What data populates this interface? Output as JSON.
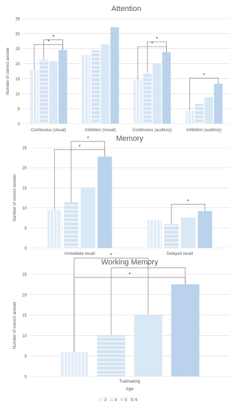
{
  "colors": {
    "s3": "#e2ecf7",
    "s4": "#d3e3f3",
    "s5": "#d9e8f5",
    "s6": "#c4d9ef",
    "grid": "#d9d9d9",
    "axis_text": "#595959",
    "title": "#595959",
    "bracket": "#7f7f7f"
  },
  "legend": {
    "title": "Age",
    "items": [
      {
        "key": "s3",
        "label": "3"
      },
      {
        "key": "s4",
        "label": "4"
      },
      {
        "key": "s5",
        "label": "5"
      },
      {
        "key": "s6",
        "label": "6"
      }
    ]
  },
  "chart_data": [
    {
      "type": "bar",
      "title": "Attention",
      "ylabel": "Number of correct answer",
      "xlabel": "",
      "ylim": [
        0,
        35
      ],
      "yticks": [
        0,
        5,
        10,
        15,
        20,
        25,
        30,
        35
      ],
      "grid": true,
      "categories": [
        "Continuous (visual)",
        "Inhibition (visual)",
        "Continuous (auditory)",
        "Inhibition (auditory)"
      ],
      "series": [
        {
          "name": "3",
          "values": [
            17.8,
            22.9,
            14.5,
            4.4
          ]
        },
        {
          "name": "4",
          "values": [
            21.3,
            24.4,
            16.9,
            6.6
          ]
        },
        {
          "name": "5",
          "values": [
            20.8,
            26.4,
            20.1,
            8.8
          ]
        },
        {
          "name": "6",
          "values": [
            24.5,
            32.1,
            23.8,
            13.3
          ]
        }
      ],
      "significance": [
        {
          "category": 0,
          "from": 0,
          "to": 3,
          "label": "*"
        },
        {
          "category": 0,
          "from": 1,
          "to": 3,
          "label": "*"
        },
        {
          "category": 2,
          "from": 0,
          "to": 3,
          "label": "*"
        },
        {
          "category": 2,
          "from": 1,
          "to": 3,
          "label": "*"
        },
        {
          "category": 3,
          "from": 0,
          "to": 3,
          "label": "*"
        }
      ]
    },
    {
      "type": "bar",
      "title": "Memory",
      "ylabel": "Number of correct answer",
      "xlabel": "",
      "ylim": [
        0,
        25
      ],
      "yticks": [
        0,
        5,
        10,
        15,
        20,
        25
      ],
      "grid": true,
      "categories": [
        "Immediate recall",
        "Delayed recall"
      ],
      "series": [
        {
          "name": "3",
          "values": [
            9.5,
            7.0
          ]
        },
        {
          "name": "4",
          "values": [
            11.4,
            5.9
          ]
        },
        {
          "name": "5",
          "values": [
            15.1,
            7.6
          ]
        },
        {
          "name": "6",
          "values": [
            22.8,
            9.2
          ]
        }
      ],
      "significance": [
        {
          "category": 0,
          "from": 0,
          "to": 3,
          "label": "*"
        },
        {
          "category": 0,
          "from": 1,
          "to": 3,
          "label": "*"
        },
        {
          "category": 1,
          "from": 1,
          "to": 3,
          "label": "*"
        }
      ]
    },
    {
      "type": "bar",
      "title": "Working Memory",
      "ylabel": "Number of correct answer",
      "xlabel": "Age",
      "ylim": [
        0,
        25
      ],
      "yticks": [
        0,
        5,
        10,
        15,
        20,
        25
      ],
      "grid": true,
      "categories": [
        "Trailmaking"
      ],
      "series": [
        {
          "name": "3",
          "values": [
            6.0
          ]
        },
        {
          "name": "4",
          "values": [
            10.1
          ]
        },
        {
          "name": "5",
          "values": [
            15.1
          ]
        },
        {
          "name": "6",
          "values": [
            22.5
          ]
        }
      ],
      "significance": [
        {
          "category": 0,
          "from": 0,
          "to": 3,
          "label": "*"
        },
        {
          "category": 0,
          "from": 1,
          "to": 3,
          "label": "*"
        },
        {
          "category": 0,
          "from": 0,
          "to": 2,
          "label": "*"
        }
      ]
    }
  ]
}
